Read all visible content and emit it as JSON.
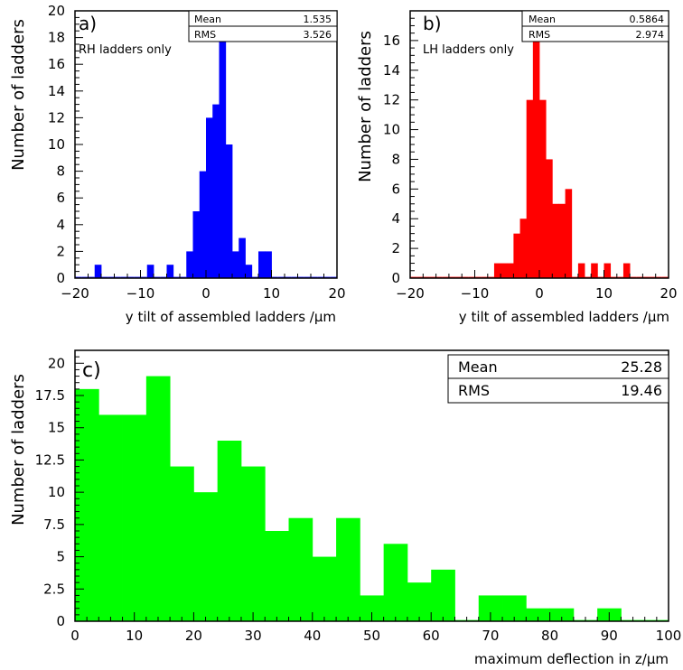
{
  "chart_data": [
    {
      "type": "bar",
      "panel_label": "a)",
      "annotation": "RH ladders only",
      "xlabel": "y tilt of assembled ladders /μm",
      "ylabel": "Number of ladders",
      "xlim": [
        -20,
        20
      ],
      "ylim": [
        0,
        20
      ],
      "x_ticks": [
        -20,
        -10,
        0,
        10,
        20
      ],
      "x_tick_labels": [
        "−20",
        "−10",
        "0",
        "10",
        "20"
      ],
      "y_ticks": [
        0,
        2,
        4,
        6,
        8,
        10,
        12,
        14,
        16,
        18,
        20
      ],
      "y_tick_labels": [
        "0",
        "2",
        "4",
        "6",
        "8",
        "10",
        "12",
        "14",
        "16",
        "18",
        "20"
      ],
      "color": "#0000ff",
      "bin_edges": [
        -20,
        -19,
        -18,
        -17,
        -16,
        -15,
        -14,
        -13,
        -12,
        -11,
        -10,
        -9,
        -8,
        -7,
        -6,
        -5,
        -4,
        -3,
        -2,
        -1,
        0,
        1,
        2,
        3,
        4,
        5,
        6,
        7,
        8,
        9,
        10,
        11,
        12,
        13,
        14,
        15,
        16,
        17,
        18,
        19,
        20
      ],
      "values": [
        0,
        0,
        0,
        1,
        0,
        0,
        0,
        0,
        0,
        0,
        0,
        1,
        0,
        0,
        1,
        0,
        0,
        2,
        5,
        8,
        12,
        13,
        18,
        10,
        2,
        3,
        1,
        0,
        2,
        2,
        0,
        0,
        0,
        0,
        0,
        0,
        0,
        0,
        0,
        0
      ],
      "stats": [
        {
          "label": "Mean",
          "value": "1.535"
        },
        {
          "label": "RMS",
          "value": "3.526"
        }
      ]
    },
    {
      "type": "bar",
      "panel_label": "b)",
      "annotation": "LH ladders only",
      "xlabel": "y tilt of assembled ladders /μm",
      "ylabel": "Number of ladders",
      "xlim": [
        -20,
        20
      ],
      "ylim": [
        0,
        18
      ],
      "x_ticks": [
        -20,
        -10,
        0,
        10,
        20
      ],
      "x_tick_labels": [
        "−20",
        "−10",
        "0",
        "10",
        "20"
      ],
      "y_ticks": [
        0,
        2,
        4,
        6,
        8,
        10,
        12,
        14,
        16
      ],
      "y_tick_labels": [
        "0",
        "2",
        "4",
        "6",
        "8",
        "10",
        "12",
        "14",
        "16"
      ],
      "color": "#ff0000",
      "bin_edges": [
        -20,
        -19,
        -18,
        -17,
        -16,
        -15,
        -14,
        -13,
        -12,
        -11,
        -10,
        -9,
        -8,
        -7,
        -6,
        -5,
        -4,
        -3,
        -2,
        -1,
        0,
        1,
        2,
        3,
        4,
        5,
        6,
        7,
        8,
        9,
        10,
        11,
        12,
        13,
        14,
        15,
        16,
        17,
        18,
        19,
        20
      ],
      "values": [
        0,
        0,
        0,
        0,
        0,
        0,
        0,
        0,
        0,
        0,
        0,
        0,
        0,
        1,
        1,
        1,
        3,
        4,
        12,
        16,
        12,
        8,
        5,
        5,
        6,
        0,
        1,
        0,
        1,
        0,
        1,
        0,
        0,
        1,
        0,
        0,
        0,
        0,
        0,
        0
      ],
      "stats": [
        {
          "label": "Mean",
          "value": "0.5864"
        },
        {
          "label": "RMS",
          "value": "2.974"
        }
      ]
    },
    {
      "type": "bar",
      "panel_label": "c)",
      "annotation": "",
      "xlabel": "maximum deflection in z/μm",
      "ylabel": "Number of ladders",
      "xlim": [
        0,
        100
      ],
      "ylim": [
        0,
        21
      ],
      "x_ticks": [
        0,
        10,
        20,
        30,
        40,
        50,
        60,
        70,
        80,
        90,
        100
      ],
      "x_tick_labels": [
        "0",
        "10",
        "20",
        "30",
        "40",
        "50",
        "60",
        "70",
        "80",
        "90",
        "100"
      ],
      "y_ticks": [
        0,
        2.5,
        5,
        7.5,
        10,
        12.5,
        15,
        17.5,
        20
      ],
      "y_tick_labels": [
        "0",
        "2.5",
        "5",
        "7.5",
        "10",
        "12.5",
        "15",
        "17.5",
        "20"
      ],
      "color": "#00ff00",
      "bin_edges": [
        0,
        4,
        8,
        12,
        16,
        20,
        24,
        28,
        32,
        36,
        40,
        44,
        48,
        52,
        56,
        60,
        64,
        68,
        72,
        76,
        80,
        84,
        88,
        92,
        96,
        100
      ],
      "values": [
        18,
        16,
        16,
        19,
        12,
        10,
        14,
        12,
        7,
        8,
        5,
        8,
        2,
        6,
        3,
        4,
        0,
        2,
        2,
        1,
        1,
        0,
        1,
        0,
        0
      ],
      "stats": [
        {
          "label": "Mean",
          "value": "25.28"
        },
        {
          "label": "RMS",
          "value": "19.46"
        }
      ]
    }
  ]
}
